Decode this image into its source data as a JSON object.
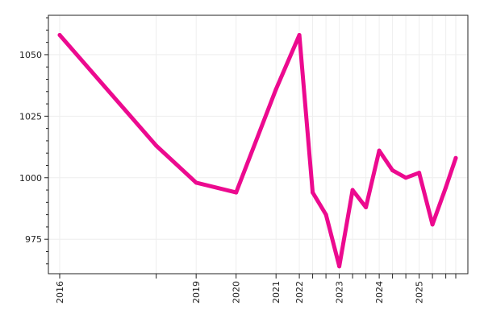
{
  "chart_data": {
    "type": "line",
    "title": "",
    "xlabel": "",
    "ylabel": "",
    "x": [
      "2016-01",
      "2018-06",
      "2019-06",
      "2020-06",
      "2021-06",
      "2022-01",
      "2022-05",
      "2022-09",
      "2023-01",
      "2023-05",
      "2023-09",
      "2024-01",
      "2024-05",
      "2024-09",
      "2025-01",
      "2025-05",
      "2025-09",
      "2025-12"
    ],
    "values": [
      1058,
      1013,
      998,
      994,
      1036,
      1058,
      994,
      985,
      964,
      995,
      988,
      1011,
      1003,
      1000,
      1002,
      981,
      996,
      1008
    ],
    "x_tick_labels": [
      "2016",
      "2019",
      "2020",
      "2021",
      "2022",
      "2023",
      "2024",
      "2025"
    ],
    "y_ticks": [
      975,
      1000,
      1025,
      1050
    ],
    "ylim": [
      961,
      1066
    ],
    "grid": true,
    "legend": "none",
    "colors": {
      "line": "#ec0a8f",
      "grid": "#eeeeee",
      "axis": "#222222"
    }
  }
}
